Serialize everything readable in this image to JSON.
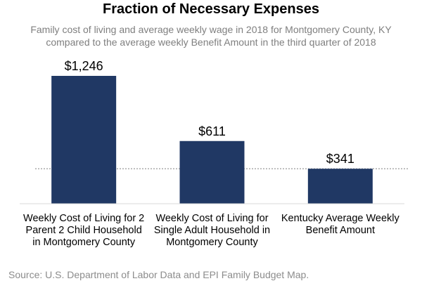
{
  "chart_data": {
    "type": "bar",
    "title": "Fraction of Necessary Expenses",
    "subtitle": "Family cost of living and average weekly wage in 2018 for Montgomery County, KY compared to the average weekly Benefit Amount in the third quarter of 2018",
    "categories": [
      "Weekly Cost of Living for 2 Parent 2 Child Household in Montgomery County",
      "Weekly Cost of Living for Single Adult Household in Montgomery County",
      "Kentucky Average Weekly Benefit Amount"
    ],
    "values": [
      1246,
      611,
      341
    ],
    "value_labels": [
      "$1,246",
      "$611",
      "$341"
    ],
    "color": "#203864",
    "source": "Source: U.S. Department of Labor Data and EPI Family Budget Map."
  }
}
